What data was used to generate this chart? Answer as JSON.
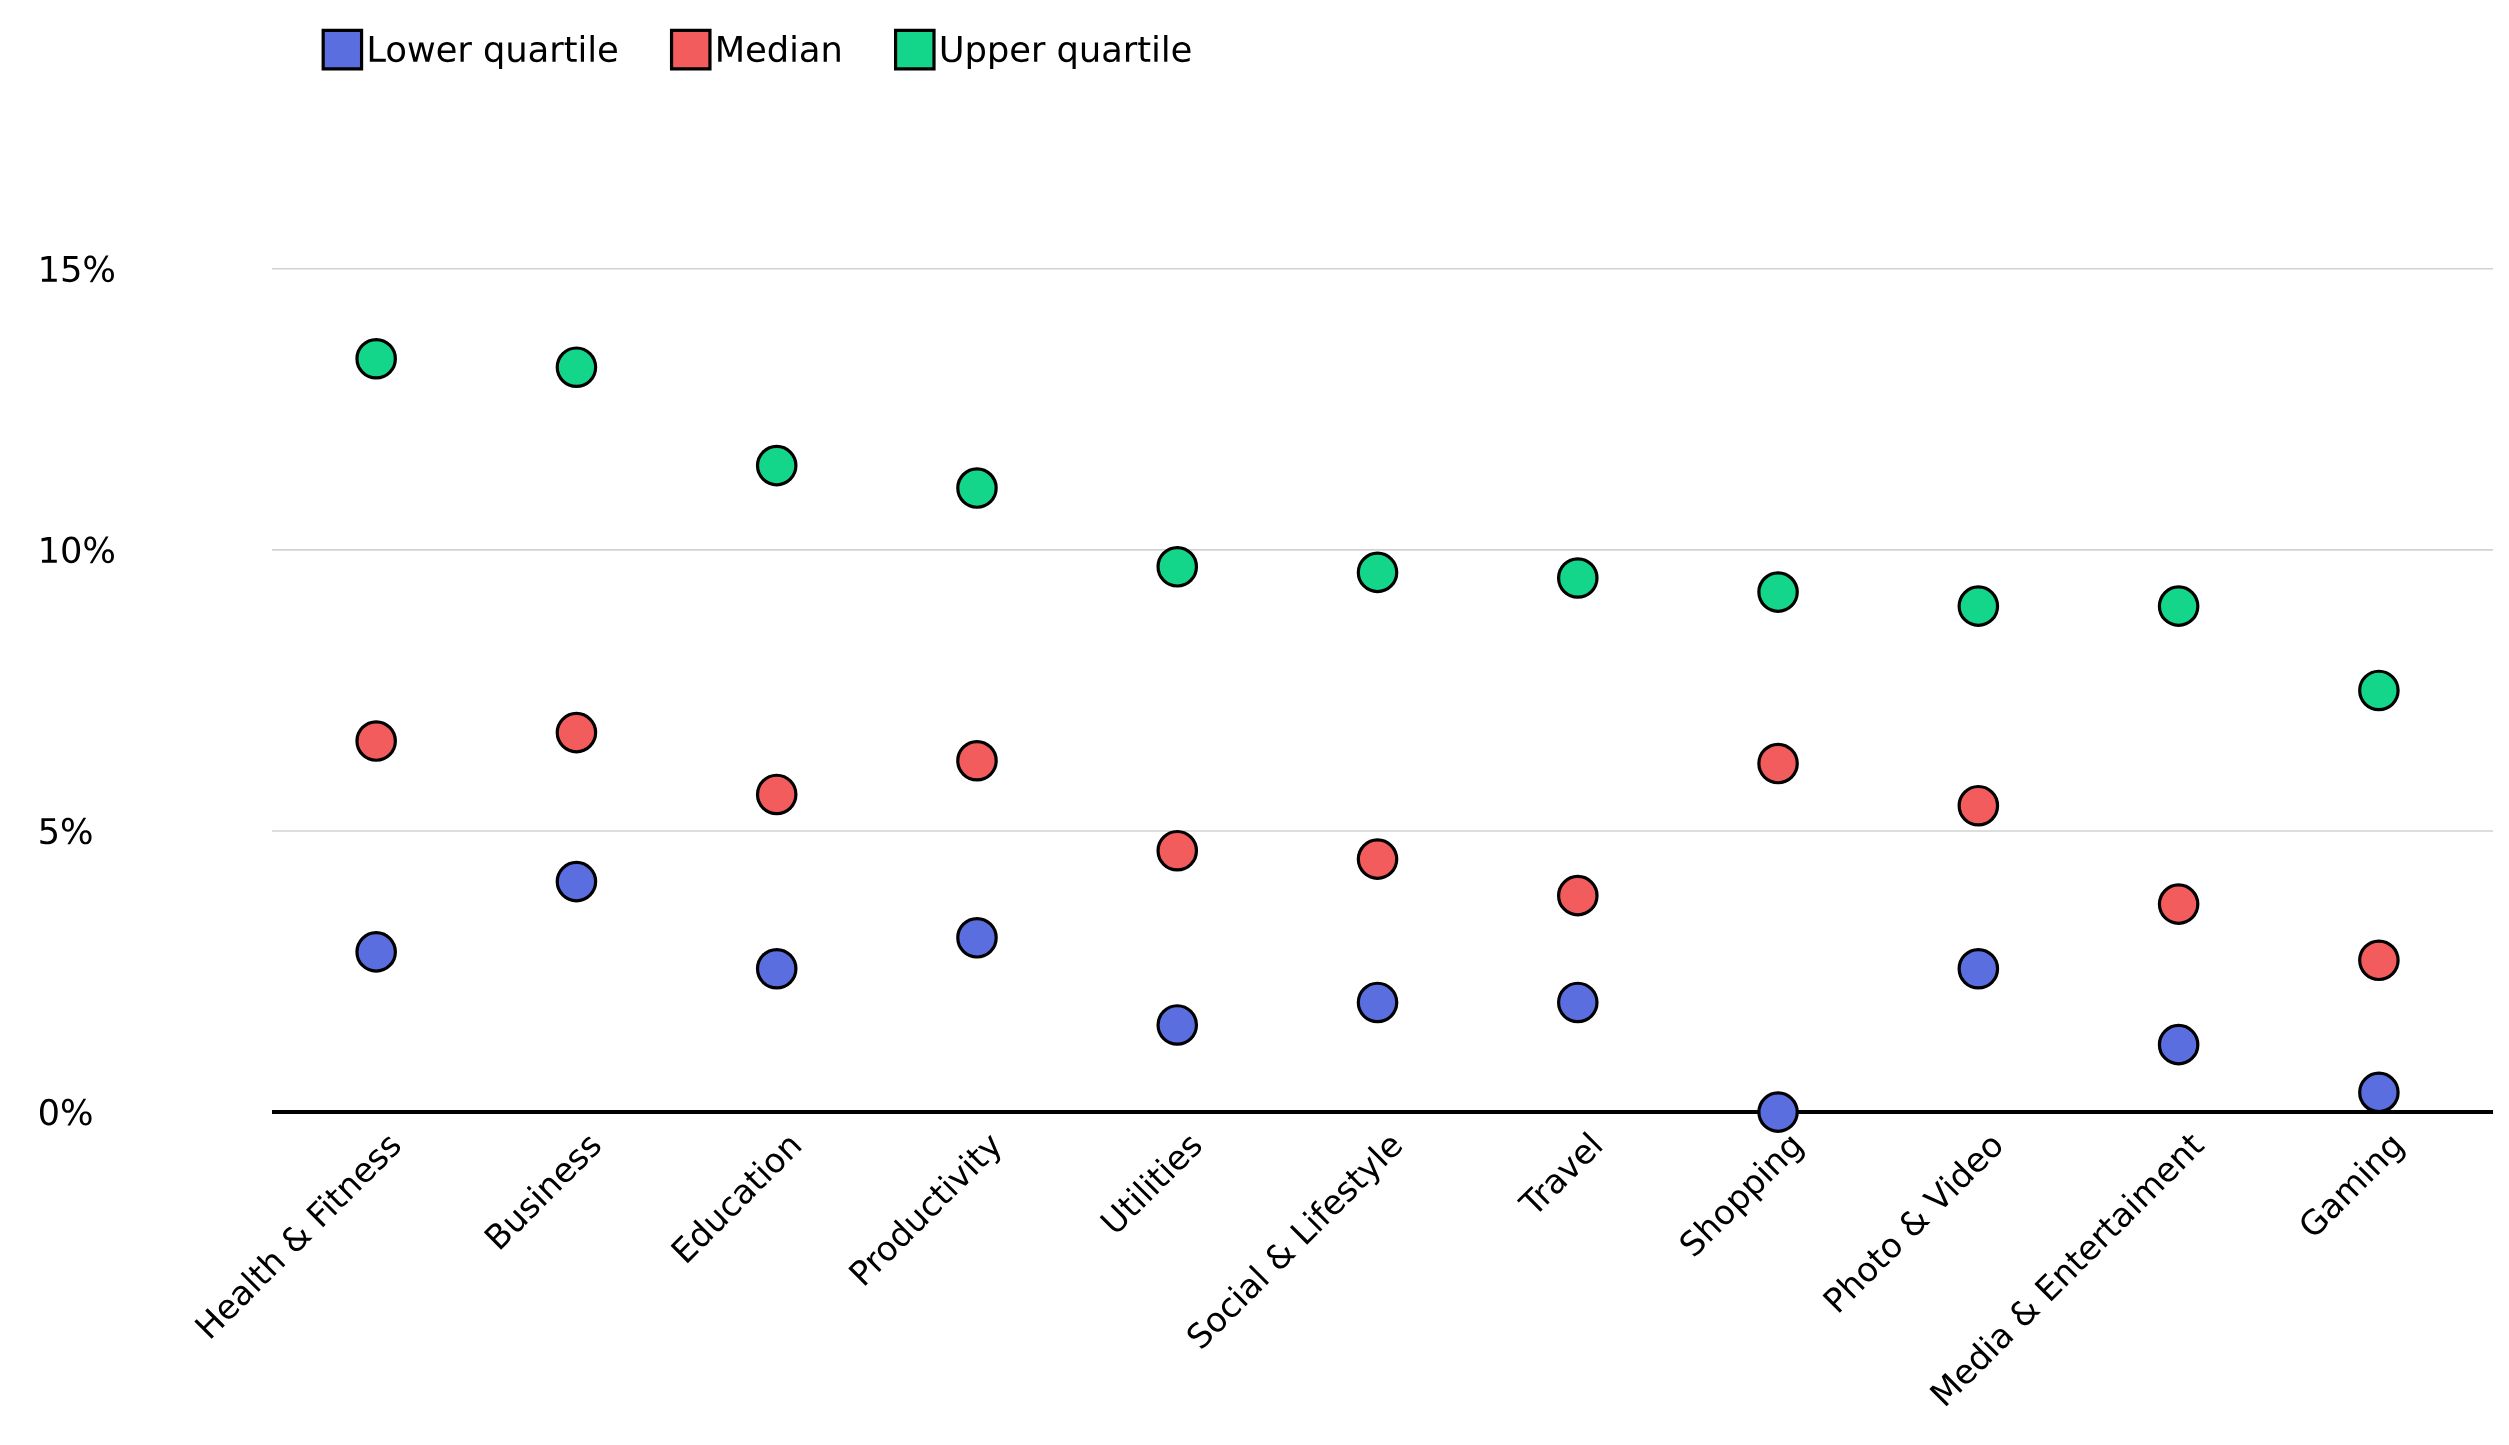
{
  "chart_data": {
    "type": "scatter",
    "categories": [
      "Health & Fitness",
      "Business",
      "Education",
      "Productivity",
      "Utilities",
      "Social & Lifestyle",
      "Travel",
      "Shopping",
      "Photo & Video",
      "Media & Entertaiment",
      "Gaming"
    ],
    "series": [
      {
        "name": "Lower quartile",
        "color": "#5a6ee0",
        "values": [
          2.85,
          4.1,
          2.55,
          3.1,
          1.55,
          1.95,
          1.95,
          0,
          2.55,
          1.2,
          0.35
        ]
      },
      {
        "name": "Median",
        "color": "#f25c5c",
        "values": [
          6.6,
          6.75,
          5.65,
          6.25,
          4.65,
          4.5,
          3.85,
          6.2,
          5.45,
          3.7,
          2.7
        ]
      },
      {
        "name": "Upper quartile",
        "color": "#14d68a",
        "values": [
          13.4,
          13.25,
          11.5,
          11.1,
          9.7,
          9.6,
          9.5,
          9.25,
          9.0,
          9.0,
          7.5
        ]
      }
    ],
    "ylim": [
      0,
      15
    ],
    "yticks": [
      {
        "value": 0,
        "label": "0%"
      },
      {
        "value": 5,
        "label": "5%"
      },
      {
        "value": 10,
        "label": "10%"
      },
      {
        "value": 15,
        "label": "15%"
      }
    ],
    "grid": "y",
    "legend": "top left",
    "marker": "circle"
  }
}
